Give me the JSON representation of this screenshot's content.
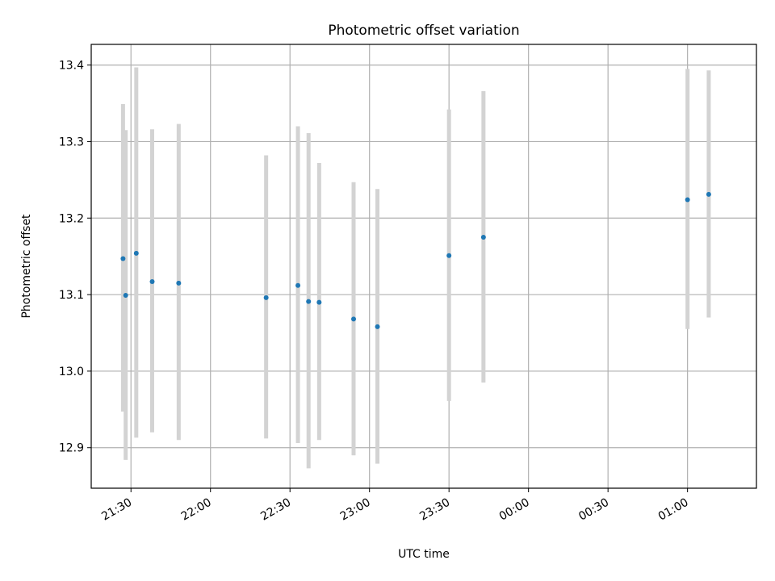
{
  "chart_data": {
    "type": "scatter",
    "title": "Photometric offset variation",
    "xlabel": "UTC time",
    "ylabel": "Photometric offset",
    "x_unit": "UTC time (HH:MM), clock continues past midnight",
    "xlim": [
      "21:15",
      "25:26"
    ],
    "ylim": [
      12.847,
      13.427
    ],
    "grid": true,
    "xticks": [
      "21:30",
      "22:00",
      "22:30",
      "23:00",
      "23:30",
      "00:00",
      "00:30",
      "01:00"
    ],
    "yticks": [
      "12.9",
      "13.0",
      "13.1",
      "13.2",
      "13.3",
      "13.4"
    ],
    "marker_color": "#1f77b4",
    "errorbar_color": "#d3d3d3",
    "axes_color": "#000000",
    "grid_color": "#b0b0b0",
    "series": [
      {
        "points": [
          {
            "x": "21:27",
            "y": 13.147,
            "ylow": 12.947,
            "yhigh": 13.349
          },
          {
            "x": "21:28",
            "y": 13.099,
            "ylow": 12.884,
            "yhigh": 13.315
          },
          {
            "x": "21:32",
            "y": 13.154,
            "ylow": 12.913,
            "yhigh": 13.397
          },
          {
            "x": "21:38",
            "y": 13.117,
            "ylow": 12.92,
            "yhigh": 13.316
          },
          {
            "x": "21:48",
            "y": 13.115,
            "ylow": 12.91,
            "yhigh": 13.323
          },
          {
            "x": "22:21",
            "y": 13.096,
            "ylow": 12.912,
            "yhigh": 13.282
          },
          {
            "x": "22:33",
            "y": 13.112,
            "ylow": 12.906,
            "yhigh": 13.32
          },
          {
            "x": "22:37",
            "y": 13.091,
            "ylow": 12.873,
            "yhigh": 13.311
          },
          {
            "x": "22:41",
            "y": 13.09,
            "ylow": 12.91,
            "yhigh": 13.272
          },
          {
            "x": "22:54",
            "y": 13.068,
            "ylow": 12.89,
            "yhigh": 13.247
          },
          {
            "x": "23:03",
            "y": 13.058,
            "ylow": 12.879,
            "yhigh": 13.238
          },
          {
            "x": "23:30",
            "y": 13.151,
            "ylow": 12.961,
            "yhigh": 13.342
          },
          {
            "x": "23:43",
            "y": 13.175,
            "ylow": 12.985,
            "yhigh": 13.366
          },
          {
            "x": "25:00",
            "y": 13.224,
            "ylow": 13.055,
            "yhigh": 13.395
          },
          {
            "x": "25:08",
            "y": 13.231,
            "ylow": 13.07,
            "yhigh": 13.393
          }
        ]
      }
    ]
  }
}
